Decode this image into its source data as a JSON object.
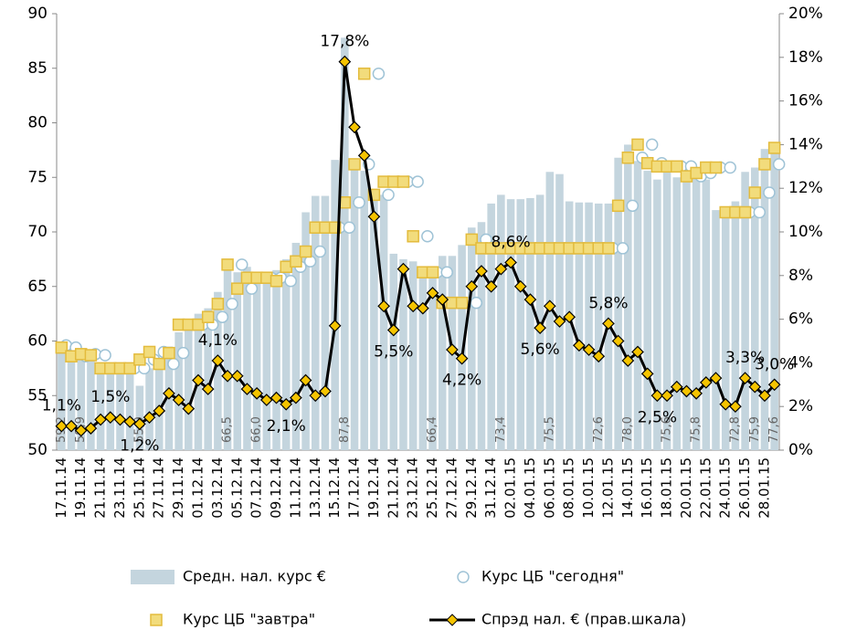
{
  "chart_data": {
    "type": "bar",
    "categories": [
      "17.11.14",
      null,
      "19.11.14",
      null,
      "21.11.14",
      null,
      "23.11.14",
      null,
      "25.11.14",
      null,
      "27.11.14",
      null,
      "29.11.14",
      null,
      "01.12.14",
      null,
      "03.12.14",
      null,
      "05.12.14",
      null,
      "07.12.14",
      null,
      "09.12.14",
      null,
      "11.12.14",
      null,
      "13.12.14",
      null,
      "15.12.14",
      null,
      "17.12.14",
      null,
      "19.12.14",
      null,
      "21.12.14",
      null,
      "23.12.14",
      null,
      "25.12.14",
      null,
      "27.12.14",
      null,
      "29.12.14",
      null,
      "31.12.14",
      null,
      "02.01.15",
      null,
      "04.01.15",
      null,
      "06.01.15",
      null,
      "08.01.15",
      null,
      "10.01.15",
      null,
      "12.01.15",
      null,
      "14.01.15",
      null,
      "16.01.15",
      null,
      "18.01.15",
      null,
      "20.01.15",
      null,
      "22.01.15",
      null,
      "24.01.15",
      null,
      "26.01.15",
      null,
      "28.01.15",
      null
    ],
    "series": [
      {
        "name": "Средн. нал. курс €",
        "type": "bar",
        "color": "#c4d5de",
        "values": [
          59.2,
          59.0,
          58.9,
          58.7,
          58.0,
          57.5,
          57.4,
          57.2,
          55.9,
          57.5,
          58.3,
          59.5,
          60.8,
          61.8,
          62.5,
          63.0,
          64.5,
          66.5,
          66.3,
          66.8,
          66.0,
          66.0,
          66.5,
          67.5,
          69.0,
          71.8,
          73.3,
          73.3,
          76.6,
          87.8,
          76.6,
          75.6,
          73.9,
          73.4,
          68.0,
          67.5,
          67.3,
          66.8,
          66.4,
          67.8,
          67.8,
          68.8,
          70.4,
          70.9,
          72.6,
          73.4,
          73.0,
          73.0,
          73.1,
          73.4,
          75.5,
          75.3,
          72.8,
          72.7,
          72.7,
          72.6,
          72.6,
          76.8,
          78.0,
          76.5,
          75.6,
          74.8,
          75.6,
          75.0,
          75.0,
          75.8,
          74.8,
          72.0,
          72.0,
          72.8,
          75.5,
          75.9,
          77.6,
          77.6
        ],
        "value_labels": [
          "59,2",
          null,
          "58,9",
          null,
          null,
          null,
          null,
          null,
          "55,9",
          null,
          null,
          null,
          null,
          null,
          null,
          null,
          null,
          "66,5",
          null,
          null,
          "66,0",
          null,
          null,
          null,
          null,
          null,
          null,
          null,
          null,
          "87,8",
          null,
          null,
          null,
          null,
          null,
          null,
          null,
          null,
          "66,4",
          null,
          null,
          null,
          null,
          null,
          null,
          "73,4",
          null,
          null,
          null,
          null,
          "75,5",
          null,
          null,
          null,
          null,
          "72,6",
          null,
          null,
          "78,0",
          null,
          null,
          null,
          "75,6",
          null,
          null,
          "75,8",
          null,
          null,
          null,
          "72,8",
          null,
          "75,9",
          null,
          "77,6"
        ]
      },
      {
        "name": "Курс ЦБ \"сегодня\"",
        "type": "scatter",
        "marker": "circle",
        "color": "#9fc3d6",
        "values": [
          59.6,
          59.4,
          58.6,
          58.8,
          58.7,
          57.5,
          57.5,
          57.5,
          57.5,
          58.3,
          59.0,
          57.9,
          58.9,
          61.5,
          61.5,
          61.5,
          62.2,
          63.4,
          67.0,
          64.8,
          65.8,
          65.8,
          65.8,
          65.5,
          66.8,
          67.3,
          68.2,
          70.4,
          70.4,
          70.4,
          72.7,
          76.2,
          84.5,
          73.4,
          74.6,
          74.6,
          74.6,
          69.6,
          66.3,
          66.3,
          63.5,
          63.5,
          63.5,
          69.3,
          68.5,
          68.5,
          68.5,
          68.5,
          68.5,
          68.5,
          68.5,
          68.5,
          68.5,
          68.5,
          68.5,
          68.5,
          68.5,
          68.5,
          72.4,
          76.8,
          78.0,
          76.3,
          76.0,
          76.0,
          76.0,
          75.1,
          75.4,
          75.9,
          75.9,
          71.8,
          71.8,
          71.8,
          73.6,
          76.2
        ]
      },
      {
        "name": "Курс ЦБ \"завтра\"",
        "type": "scatter",
        "marker": "square",
        "color": "#f2dc7c",
        "values": [
          59.4,
          58.6,
          58.8,
          58.7,
          57.5,
          57.5,
          57.5,
          57.5,
          58.3,
          59.0,
          57.9,
          58.9,
          61.5,
          61.5,
          61.5,
          62.2,
          63.4,
          67.0,
          64.8,
          65.8,
          65.8,
          65.8,
          65.5,
          66.8,
          67.3,
          68.2,
          70.4,
          70.4,
          70.4,
          72.7,
          76.2,
          84.5,
          73.4,
          74.6,
          74.6,
          74.6,
          69.6,
          66.3,
          66.3,
          63.5,
          63.5,
          63.5,
          69.3,
          68.5,
          68.5,
          68.5,
          68.5,
          68.5,
          68.5,
          68.5,
          68.5,
          68.5,
          68.5,
          68.5,
          68.5,
          68.5,
          68.5,
          72.4,
          76.8,
          78.0,
          76.3,
          76.0,
          76.0,
          76.0,
          75.1,
          75.4,
          75.9,
          75.9,
          71.8,
          71.8,
          71.8,
          73.6,
          76.2,
          77.7
        ]
      },
      {
        "name": "Спрэд нал. € (прав.шкала)",
        "type": "line",
        "axis": "y2",
        "color": "#000000",
        "marker_color": "#f5c400",
        "values": [
          1.1,
          1.1,
          0.9,
          1.0,
          1.4,
          1.5,
          1.4,
          1.3,
          1.2,
          1.5,
          1.8,
          2.6,
          2.3,
          1.9,
          3.2,
          2.8,
          4.1,
          3.4,
          3.4,
          2.8,
          2.6,
          2.3,
          2.4,
          2.1,
          2.4,
          3.2,
          2.5,
          2.7,
          5.7,
          17.8,
          14.8,
          13.5,
          10.7,
          6.6,
          5.5,
          8.3,
          6.6,
          6.5,
          7.2,
          6.9,
          4.6,
          4.2,
          7.5,
          8.2,
          7.5,
          8.3,
          8.6,
          7.5,
          6.9,
          5.6,
          6.6,
          5.9,
          6.1,
          4.8,
          4.6,
          4.3,
          5.8,
          5.0,
          4.1,
          4.5,
          3.5,
          2.5,
          2.5,
          2.9,
          2.7,
          2.6,
          3.1,
          3.3,
          2.1,
          2.0,
          3.3,
          2.9,
          2.5,
          3.0
        ],
        "value_labels": [
          "1,1%",
          null,
          null,
          null,
          null,
          "1,5%",
          null,
          null,
          "1,2%",
          null,
          null,
          null,
          null,
          null,
          null,
          null,
          "4,1%",
          null,
          null,
          null,
          null,
          null,
          null,
          "2,1%",
          null,
          null,
          null,
          null,
          null,
          "17,8%",
          null,
          null,
          null,
          null,
          "5,5%",
          null,
          null,
          null,
          null,
          null,
          null,
          "4,2%",
          null,
          null,
          null,
          null,
          "8,6%",
          null,
          null,
          "5,6%",
          null,
          null,
          null,
          null,
          null,
          null,
          "5,8%",
          null,
          null,
          null,
          null,
          "2,5%",
          null,
          null,
          null,
          null,
          null,
          null,
          null,
          null,
          "3,3%",
          null,
          null,
          "3,0%"
        ]
      }
    ],
    "ylim": [
      50,
      90
    ],
    "yticks": [
      50,
      55,
      60,
      65,
      70,
      75,
      80,
      85,
      90
    ],
    "y2lim": [
      0,
      20
    ],
    "y2ticks": [
      {
        "value": 0,
        "label": "0%"
      },
      {
        "value": 2,
        "label": "2%"
      },
      {
        "value": 4,
        "label": "4%"
      },
      {
        "value": 6,
        "label": "6%"
      },
      {
        "value": 8,
        "label": "8%"
      },
      {
        "value": 10,
        "label": "10%"
      },
      {
        "value": 12,
        "label": "12%"
      },
      {
        "value": 14,
        "label": "14%"
      },
      {
        "value": 16,
        "label": "16%"
      },
      {
        "value": 18,
        "label": "18%"
      },
      {
        "value": 20,
        "label": "20%"
      }
    ],
    "grid": false
  }
}
